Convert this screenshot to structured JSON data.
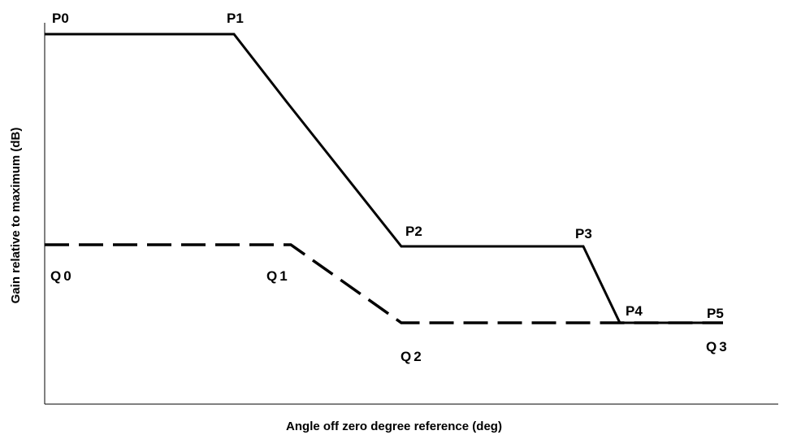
{
  "diagram": {
    "x_axis_label": "Angle off zero degree reference (deg)",
    "y_axis_label": "Gain relative to maximum (dB)",
    "solid_points": [
      "P0",
      "P1",
      "P2",
      "P3",
      "P4",
      "P5"
    ],
    "dashed_points": [
      "Q0",
      "Q1",
      "Q2",
      "Q3"
    ]
  }
}
